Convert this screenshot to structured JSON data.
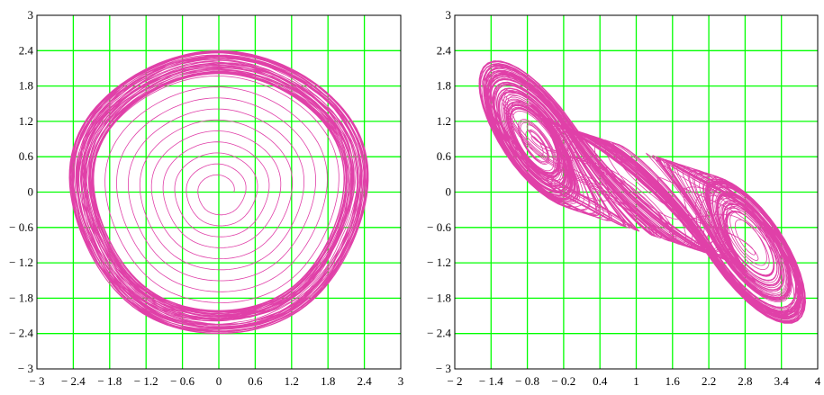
{
  "colors": {
    "grid": "#00ff00",
    "curve": "#e040a8",
    "frame": "#000000",
    "background": "#ffffff"
  },
  "chart_data": [
    {
      "type": "line",
      "title": "",
      "xlabel": "",
      "ylabel": "",
      "xlim": [
        -3,
        3
      ],
      "ylim": [
        -3,
        3
      ],
      "grid": true,
      "x_ticks": [
        -3,
        -2.4,
        -1.8,
        -1.2,
        -0.6,
        0,
        0.6,
        1.2,
        1.8,
        2.4,
        3
      ],
      "x_tick_labels": [
        "− 3",
        "− 2.4",
        "− 1.8",
        "− 1.2",
        "− 0.6",
        "0",
        "0.6",
        "1.2",
        "1.8",
        "2.4",
        "3"
      ],
      "y_ticks": [
        3,
        2.4,
        1.8,
        1.2,
        0.6,
        0,
        -0.6,
        -1.2,
        -1.8,
        -2.4,
        -3
      ],
      "y_tick_labels": [
        "3",
        "2.4",
        "1.8",
        "1.2",
        "0.6",
        "0",
        "− 0.6",
        "− 1.2",
        "− 1.8",
        "− 2.4",
        "− 3"
      ],
      "series": [
        {
          "description_kind": "spiral_to_limit_cycle",
          "inner_radius": 0.25,
          "center": [
            0,
            0
          ],
          "outer_radius_min": 2.05,
          "outer_radius_max": 2.45
        }
      ]
    },
    {
      "type": "line",
      "title": "",
      "xlabel": "",
      "ylabel": "",
      "xlim": [
        -2,
        4
      ],
      "ylim": [
        -3,
        3
      ],
      "grid": true,
      "x_ticks": [
        -2,
        -1.4,
        -0.8,
        -0.2,
        0.4,
        1,
        1.6,
        2.2,
        2.8,
        3.4,
        4
      ],
      "x_tick_labels": [
        "− 2",
        "− 1.4",
        "− 0.8",
        "− 0.2",
        "0.4",
        "1",
        "1.6",
        "2.2",
        "2.8",
        "3.4",
        "4"
      ],
      "y_ticks": [
        3,
        2.4,
        1.8,
        1.2,
        0.6,
        0,
        -0.6,
        -1.2,
        -1.8,
        -2.4,
        -3
      ],
      "y_tick_labels": [
        "3",
        "2.4",
        "1.8",
        "1.2",
        "0.6",
        "0",
        "− 0.6",
        "− 1.2",
        "− 1.8",
        "− 2.4",
        "− 3"
      ],
      "series": [
        {
          "description_kind": "double_scroll_attractor",
          "lobe_centers": [
            [
              -0.1,
              0.1
            ],
            [
              2.2,
              0
            ]
          ],
          "x_extent": [
            -1.6,
            3.8
          ],
          "y_extent": [
            -2.5,
            2.5
          ]
        }
      ]
    }
  ]
}
